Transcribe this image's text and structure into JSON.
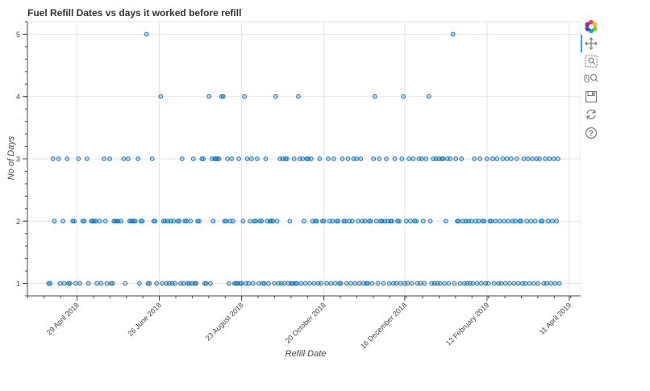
{
  "chart_data": {
    "type": "scatter",
    "title": "Fuel Refill Dates vs days it worked before refill",
    "xlabel": "Refill Date",
    "ylabel": "No of Days",
    "x_axis_type": "datetime",
    "xlim": [
      "2018-03-25",
      "2019-04-19"
    ],
    "ylim": [
      0.8,
      5.2
    ],
    "x_ticks": [
      {
        "date": "2018-04-29",
        "label": "29 April 2018"
      },
      {
        "date": "2018-06-26",
        "label": "26 June 2018"
      },
      {
        "date": "2018-08-23",
        "label": "23 August 2018"
      },
      {
        "date": "2018-10-20",
        "label": "20 October 2018"
      },
      {
        "date": "2018-12-16",
        "label": "16 December 2018"
      },
      {
        "date": "2019-02-12",
        "label": "12 February 2019"
      },
      {
        "date": "2019-04-11",
        "label": "11 April 2019"
      }
    ],
    "y_ticks": [
      {
        "value": 1,
        "label": "1"
      },
      {
        "value": 2,
        "label": "2"
      },
      {
        "value": 3,
        "label": "3"
      },
      {
        "value": 4,
        "label": "4"
      },
      {
        "value": 5,
        "label": "5"
      }
    ],
    "grid": true,
    "marker_color": "#1f77b4",
    "points": [
      [
        "2018-04-09",
        1
      ],
      [
        "2018-04-10",
        1
      ],
      [
        "2018-04-12",
        3
      ],
      [
        "2018-04-13",
        2
      ],
      [
        "2018-04-16",
        3
      ],
      [
        "2018-04-17",
        1
      ],
      [
        "2018-04-19",
        2
      ],
      [
        "2018-04-20",
        1
      ],
      [
        "2018-04-22",
        3
      ],
      [
        "2018-04-23",
        1
      ],
      [
        "2018-04-24",
        1
      ],
      [
        "2018-04-26",
        2
      ],
      [
        "2018-04-27",
        2
      ],
      [
        "2018-04-28",
        1
      ],
      [
        "2018-04-30",
        3
      ],
      [
        "2018-05-01",
        1
      ],
      [
        "2018-05-03",
        2
      ],
      [
        "2018-05-04",
        2
      ],
      [
        "2018-05-06",
        3
      ],
      [
        "2018-05-07",
        1
      ],
      [
        "2018-05-09",
        2
      ],
      [
        "2018-05-10",
        2
      ],
      [
        "2018-05-11",
        2
      ],
      [
        "2018-05-12",
        2
      ],
      [
        "2018-05-13",
        1
      ],
      [
        "2018-05-15",
        2
      ],
      [
        "2018-05-16",
        1
      ],
      [
        "2018-05-18",
        3
      ],
      [
        "2018-05-19",
        2
      ],
      [
        "2018-05-20",
        1
      ],
      [
        "2018-05-22",
        3
      ],
      [
        "2018-05-23",
        1
      ],
      [
        "2018-05-24",
        1
      ],
      [
        "2018-05-25",
        2
      ],
      [
        "2018-05-26",
        2
      ],
      [
        "2018-05-27",
        2
      ],
      [
        "2018-05-28",
        2
      ],
      [
        "2018-05-30",
        2
      ],
      [
        "2018-06-01",
        3
      ],
      [
        "2018-06-02",
        1
      ],
      [
        "2018-06-04",
        3
      ],
      [
        "2018-06-05",
        2
      ],
      [
        "2018-06-06",
        2
      ],
      [
        "2018-06-07",
        2
      ],
      [
        "2018-06-08",
        2
      ],
      [
        "2018-06-09",
        2
      ],
      [
        "2018-06-11",
        3
      ],
      [
        "2018-06-12",
        1
      ],
      [
        "2018-06-13",
        2
      ],
      [
        "2018-06-14",
        2
      ],
      [
        "2018-06-17",
        5
      ],
      [
        "2018-06-18",
        1
      ],
      [
        "2018-06-19",
        1
      ],
      [
        "2018-06-21",
        3
      ],
      [
        "2018-06-22",
        2
      ],
      [
        "2018-06-23",
        2
      ],
      [
        "2018-06-24",
        1
      ],
      [
        "2018-06-27",
        4
      ],
      [
        "2018-06-28",
        1
      ],
      [
        "2018-06-29",
        2
      ],
      [
        "2018-06-30",
        2
      ],
      [
        "2018-07-01",
        1
      ],
      [
        "2018-07-02",
        2
      ],
      [
        "2018-07-03",
        1
      ],
      [
        "2018-07-04",
        2
      ],
      [
        "2018-07-05",
        1
      ],
      [
        "2018-07-06",
        2
      ],
      [
        "2018-07-07",
        1
      ],
      [
        "2018-07-09",
        2
      ],
      [
        "2018-07-10",
        2
      ],
      [
        "2018-07-11",
        1
      ],
      [
        "2018-07-12",
        3
      ],
      [
        "2018-07-13",
        1
      ],
      [
        "2018-07-14",
        2
      ],
      [
        "2018-07-15",
        2
      ],
      [
        "2018-07-16",
        1
      ],
      [
        "2018-07-17",
        1
      ],
      [
        "2018-07-18",
        2
      ],
      [
        "2018-07-19",
        1
      ],
      [
        "2018-07-20",
        3
      ],
      [
        "2018-07-21",
        1
      ],
      [
        "2018-07-22",
        1
      ],
      [
        "2018-07-23",
        2
      ],
      [
        "2018-07-24",
        2
      ],
      [
        "2018-07-26",
        3
      ],
      [
        "2018-07-27",
        3
      ],
      [
        "2018-07-28",
        1
      ],
      [
        "2018-07-29",
        1
      ],
      [
        "2018-07-31",
        4
      ],
      [
        "2018-08-01",
        1
      ],
      [
        "2018-08-02",
        3
      ],
      [
        "2018-08-03",
        2
      ],
      [
        "2018-08-04",
        3
      ],
      [
        "2018-08-05",
        3
      ],
      [
        "2018-08-06",
        3
      ],
      [
        "2018-08-07",
        3
      ],
      [
        "2018-08-09",
        4
      ],
      [
        "2018-08-10",
        4
      ],
      [
        "2018-08-11",
        2
      ],
      [
        "2018-08-12",
        2
      ],
      [
        "2018-08-13",
        3
      ],
      [
        "2018-08-14",
        1
      ],
      [
        "2018-08-15",
        2
      ],
      [
        "2018-08-16",
        3
      ],
      [
        "2018-08-17",
        2
      ],
      [
        "2018-08-18",
        1
      ],
      [
        "2018-08-19",
        1
      ],
      [
        "2018-08-20",
        1
      ],
      [
        "2018-08-21",
        3
      ],
      [
        "2018-08-22",
        1
      ],
      [
        "2018-08-23",
        1
      ],
      [
        "2018-08-24",
        2
      ],
      [
        "2018-08-25",
        4
      ],
      [
        "2018-08-26",
        1
      ],
      [
        "2018-08-27",
        3
      ],
      [
        "2018-08-28",
        1
      ],
      [
        "2018-08-29",
        2
      ],
      [
        "2018-08-30",
        3
      ],
      [
        "2018-08-31",
        1
      ],
      [
        "2018-09-01",
        2
      ],
      [
        "2018-09-02",
        2
      ],
      [
        "2018-09-03",
        3
      ],
      [
        "2018-09-04",
        1
      ],
      [
        "2018-09-05",
        2
      ],
      [
        "2018-09-06",
        2
      ],
      [
        "2018-09-07",
        1
      ],
      [
        "2018-09-08",
        1
      ],
      [
        "2018-09-09",
        3
      ],
      [
        "2018-09-10",
        2
      ],
      [
        "2018-09-11",
        1
      ],
      [
        "2018-09-12",
        2
      ],
      [
        "2018-09-13",
        2
      ],
      [
        "2018-09-14",
        2
      ],
      [
        "2018-09-15",
        1
      ],
      [
        "2018-09-16",
        4
      ],
      [
        "2018-09-17",
        2
      ],
      [
        "2018-09-18",
        1
      ],
      [
        "2018-09-19",
        3
      ],
      [
        "2018-09-20",
        1
      ],
      [
        "2018-09-21",
        3
      ],
      [
        "2018-09-22",
        1
      ],
      [
        "2018-09-23",
        3
      ],
      [
        "2018-09-24",
        3
      ],
      [
        "2018-09-25",
        1
      ],
      [
        "2018-09-26",
        2
      ],
      [
        "2018-09-27",
        1
      ],
      [
        "2018-09-28",
        1
      ],
      [
        "2018-09-29",
        3
      ],
      [
        "2018-09-30",
        1
      ],
      [
        "2018-10-01",
        1
      ],
      [
        "2018-10-02",
        4
      ],
      [
        "2018-10-03",
        3
      ],
      [
        "2018-10-04",
        1
      ],
      [
        "2018-10-05",
        3
      ],
      [
        "2018-10-06",
        2
      ],
      [
        "2018-10-07",
        1
      ],
      [
        "2018-10-08",
        3
      ],
      [
        "2018-10-09",
        3
      ],
      [
        "2018-10-10",
        1
      ],
      [
        "2018-10-11",
        3
      ],
      [
        "2018-10-12",
        2
      ],
      [
        "2018-10-13",
        1
      ],
      [
        "2018-10-14",
        2
      ],
      [
        "2018-10-15",
        2
      ],
      [
        "2018-10-16",
        1
      ],
      [
        "2018-10-17",
        3
      ],
      [
        "2018-10-18",
        1
      ],
      [
        "2018-10-19",
        2
      ],
      [
        "2018-10-20",
        2
      ],
      [
        "2018-10-22",
        1
      ],
      [
        "2018-10-23",
        3
      ],
      [
        "2018-10-24",
        2
      ],
      [
        "2018-10-25",
        1
      ],
      [
        "2018-10-26",
        2
      ],
      [
        "2018-10-27",
        3
      ],
      [
        "2018-10-28",
        1
      ],
      [
        "2018-10-29",
        2
      ],
      [
        "2018-10-30",
        2
      ],
      [
        "2018-10-31",
        1
      ],
      [
        "2018-11-01",
        1
      ],
      [
        "2018-11-02",
        3
      ],
      [
        "2018-11-03",
        2
      ],
      [
        "2018-11-04",
        2
      ],
      [
        "2018-11-05",
        1
      ],
      [
        "2018-11-06",
        3
      ],
      [
        "2018-11-07",
        2
      ],
      [
        "2018-11-08",
        1
      ],
      [
        "2018-11-09",
        2
      ],
      [
        "2018-11-10",
        3
      ],
      [
        "2018-11-11",
        1
      ],
      [
        "2018-11-12",
        3
      ],
      [
        "2018-11-13",
        2
      ],
      [
        "2018-11-14",
        1
      ],
      [
        "2018-11-15",
        3
      ],
      [
        "2018-11-16",
        2
      ],
      [
        "2018-11-17",
        1
      ],
      [
        "2018-11-18",
        2
      ],
      [
        "2018-11-19",
        1
      ],
      [
        "2018-11-20",
        1
      ],
      [
        "2018-11-21",
        2
      ],
      [
        "2018-11-22",
        2
      ],
      [
        "2018-11-23",
        1
      ],
      [
        "2018-11-24",
        3
      ],
      [
        "2018-11-25",
        4
      ],
      [
        "2018-11-26",
        2
      ],
      [
        "2018-11-27",
        1
      ],
      [
        "2018-11-28",
        3
      ],
      [
        "2018-11-29",
        2
      ],
      [
        "2018-11-30",
        2
      ],
      [
        "2018-12-01",
        1
      ],
      [
        "2018-12-02",
        2
      ],
      [
        "2018-12-03",
        3
      ],
      [
        "2018-12-04",
        2
      ],
      [
        "2018-12-05",
        1
      ],
      [
        "2018-12-06",
        2
      ],
      [
        "2018-12-07",
        2
      ],
      [
        "2018-12-08",
        1
      ],
      [
        "2018-12-09",
        3
      ],
      [
        "2018-12-10",
        1
      ],
      [
        "2018-12-11",
        2
      ],
      [
        "2018-12-12",
        2
      ],
      [
        "2018-12-13",
        1
      ],
      [
        "2018-12-14",
        3
      ],
      [
        "2018-12-15",
        4
      ],
      [
        "2018-12-16",
        1
      ],
      [
        "2018-12-17",
        2
      ],
      [
        "2018-12-18",
        1
      ],
      [
        "2018-12-19",
        3
      ],
      [
        "2018-12-20",
        2
      ],
      [
        "2018-12-21",
        1
      ],
      [
        "2018-12-22",
        3
      ],
      [
        "2018-12-23",
        2
      ],
      [
        "2018-12-24",
        2
      ],
      [
        "2018-12-25",
        1
      ],
      [
        "2018-12-26",
        3
      ],
      [
        "2018-12-27",
        1
      ],
      [
        "2018-12-28",
        3
      ],
      [
        "2018-12-29",
        2
      ],
      [
        "2018-12-30",
        1
      ],
      [
        "2018-12-31",
        3
      ],
      [
        "2019-01-02",
        4
      ],
      [
        "2019-01-03",
        2
      ],
      [
        "2019-01-04",
        1
      ],
      [
        "2019-01-05",
        3
      ],
      [
        "2019-01-06",
        1
      ],
      [
        "2019-01-07",
        3
      ],
      [
        "2019-01-08",
        1
      ],
      [
        "2019-01-09",
        3
      ],
      [
        "2019-01-10",
        1
      ],
      [
        "2019-01-11",
        3
      ],
      [
        "2019-01-12",
        3
      ],
      [
        "2019-01-13",
        1
      ],
      [
        "2019-01-14",
        2
      ],
      [
        "2019-01-15",
        3
      ],
      [
        "2019-01-16",
        1
      ],
      [
        "2019-01-17",
        3
      ],
      [
        "2019-01-19",
        5
      ],
      [
        "2019-01-20",
        1
      ],
      [
        "2019-01-21",
        3
      ],
      [
        "2019-01-22",
        2
      ],
      [
        "2019-01-23",
        2
      ],
      [
        "2019-01-24",
        1
      ],
      [
        "2019-01-25",
        3
      ],
      [
        "2019-01-26",
        2
      ],
      [
        "2019-01-27",
        1
      ],
      [
        "2019-01-28",
        2
      ],
      [
        "2019-01-29",
        1
      ],
      [
        "2019-01-30",
        2
      ],
      [
        "2019-01-31",
        1
      ],
      [
        "2019-02-01",
        2
      ],
      [
        "2019-02-02",
        1
      ],
      [
        "2019-02-03",
        3
      ],
      [
        "2019-02-04",
        2
      ],
      [
        "2019-02-05",
        1
      ],
      [
        "2019-02-06",
        2
      ],
      [
        "2019-02-07",
        3
      ],
      [
        "2019-02-08",
        1
      ],
      [
        "2019-02-09",
        2
      ],
      [
        "2019-02-10",
        2
      ],
      [
        "2019-02-11",
        1
      ],
      [
        "2019-02-12",
        3
      ],
      [
        "2019-02-13",
        1
      ],
      [
        "2019-02-14",
        2
      ],
      [
        "2019-02-15",
        2
      ],
      [
        "2019-02-16",
        3
      ],
      [
        "2019-02-17",
        1
      ],
      [
        "2019-02-18",
        2
      ],
      [
        "2019-02-19",
        3
      ],
      [
        "2019-02-20",
        1
      ],
      [
        "2019-02-21",
        2
      ],
      [
        "2019-02-22",
        1
      ],
      [
        "2019-02-23",
        3
      ],
      [
        "2019-02-24",
        2
      ],
      [
        "2019-02-25",
        1
      ],
      [
        "2019-02-26",
        3
      ],
      [
        "2019-02-27",
        2
      ],
      [
        "2019-02-28",
        1
      ],
      [
        "2019-03-01",
        3
      ],
      [
        "2019-03-02",
        2
      ],
      [
        "2019-03-03",
        1
      ],
      [
        "2019-03-04",
        2
      ],
      [
        "2019-03-05",
        3
      ],
      [
        "2019-03-06",
        1
      ],
      [
        "2019-03-07",
        2
      ],
      [
        "2019-03-08",
        2
      ],
      [
        "2019-03-09",
        1
      ],
      [
        "2019-03-10",
        3
      ],
      [
        "2019-03-11",
        1
      ],
      [
        "2019-03-12",
        2
      ],
      [
        "2019-03-13",
        3
      ],
      [
        "2019-03-14",
        1
      ],
      [
        "2019-03-15",
        2
      ],
      [
        "2019-03-16",
        3
      ],
      [
        "2019-03-17",
        1
      ],
      [
        "2019-03-18",
        2
      ],
      [
        "2019-03-19",
        3
      ],
      [
        "2019-03-20",
        1
      ],
      [
        "2019-03-21",
        3
      ],
      [
        "2019-03-22",
        2
      ],
      [
        "2019-03-23",
        2
      ],
      [
        "2019-03-24",
        1
      ],
      [
        "2019-03-25",
        3
      ],
      [
        "2019-03-26",
        1
      ],
      [
        "2019-03-27",
        2
      ],
      [
        "2019-03-28",
        3
      ],
      [
        "2019-03-29",
        1
      ],
      [
        "2019-03-30",
        2
      ],
      [
        "2019-03-31",
        3
      ],
      [
        "2019-04-01",
        1
      ],
      [
        "2019-04-02",
        2
      ],
      [
        "2019-04-03",
        3
      ],
      [
        "2019-04-04",
        1
      ]
    ]
  },
  "toolbar": {
    "logo_icon": "bokeh-logo-icon",
    "tools": [
      "pan-icon",
      "box-zoom-icon",
      "wheel-zoom-icon",
      "save-icon",
      "reset-icon",
      "help-icon"
    ]
  }
}
